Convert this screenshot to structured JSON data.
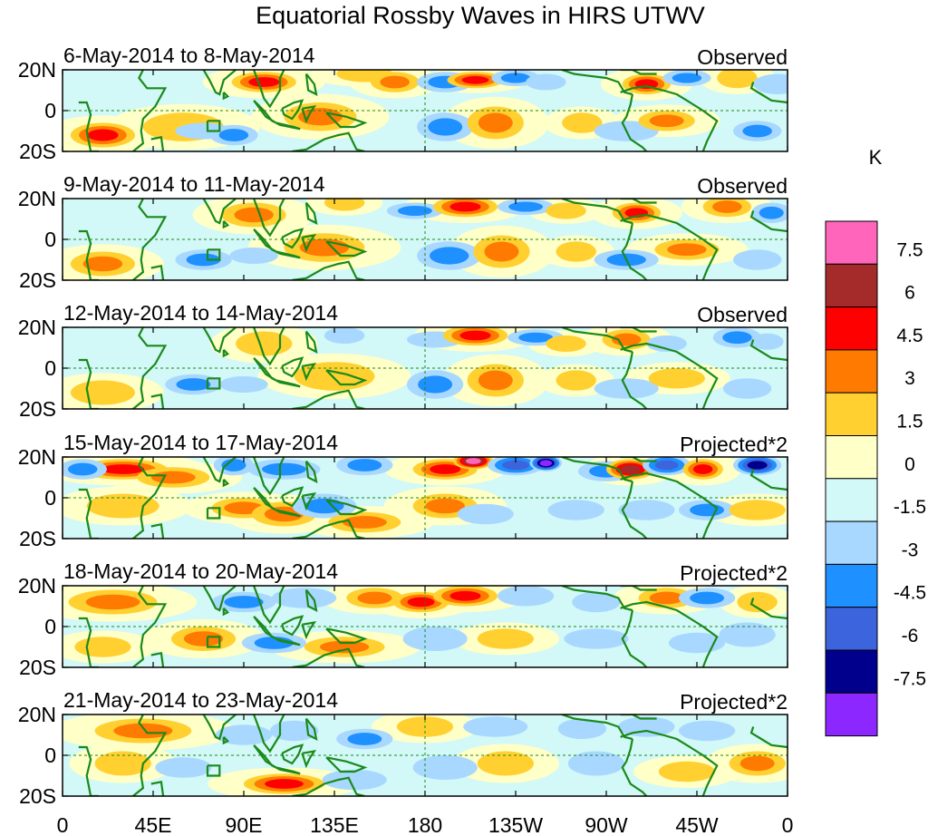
{
  "chart_data": {
    "type": "heatmap",
    "title": "Equatorial Rossby Waves in HIRS UTWV",
    "units": "K",
    "x_tick_labels": [
      "0",
      "45E",
      "90E",
      "135E",
      "180",
      "135W",
      "90W",
      "45W",
      "0"
    ],
    "x_range_deg": [
      0,
      360
    ],
    "y_tick_labels": [
      "20N",
      "0",
      "20S"
    ],
    "y_range_deg": [
      -20,
      20
    ],
    "colorbar": {
      "levels": [
        -7.5,
        -6,
        -4.5,
        -3,
        -1.5,
        0,
        1.5,
        3,
        4.5,
        6,
        7.5
      ],
      "level_labels": [
        "7.5",
        "6",
        "4.5",
        "3",
        "1.5",
        "0",
        "-1.5",
        "-3",
        "-4.5",
        "-6",
        "-7.5"
      ],
      "colors_top_to_bottom": [
        "#ff66bb",
        "#a52a2a",
        "#ff0000",
        "#ff7a00",
        "#ffd030",
        "#ffffc8",
        "#d2f8f8",
        "#a8d8ff",
        "#1e90ff",
        "#3c64dc",
        "#00008c",
        "#8c28ff"
      ]
    },
    "panels": [
      {
        "date_range": "6-May-2014 to 8-May-2014",
        "label": "Observed",
        "blobs": [
          [
            100,
            14,
            16,
            5,
            4.5
          ],
          [
            150,
            18,
            14,
            4,
            2.5
          ],
          [
            165,
            14,
            12,
            5,
            3.5
          ],
          [
            190,
            14,
            14,
            5,
            -3
          ],
          [
            205,
            15,
            14,
            4,
            5
          ],
          [
            225,
            16,
            12,
            4,
            -3.5
          ],
          [
            240,
            14,
            10,
            4,
            -2
          ],
          [
            290,
            13,
            12,
            5,
            5.5
          ],
          [
            310,
            16,
            12,
            4,
            -3
          ],
          [
            335,
            16,
            10,
            5,
            2
          ],
          [
            355,
            13,
            12,
            5,
            -2.5
          ],
          [
            60,
            -8,
            20,
            7,
            2
          ],
          [
            20,
            -12,
            16,
            6,
            4.5
          ],
          [
            70,
            -10,
            14,
            4,
            -2
          ],
          [
            85,
            -12,
            12,
            5,
            -3.5
          ],
          [
            128,
            -3,
            18,
            7,
            3
          ],
          [
            190,
            -8,
            14,
            7,
            -4
          ],
          [
            215,
            -6,
            14,
            8,
            4
          ],
          [
            258,
            -6,
            10,
            5,
            2
          ],
          [
            280,
            -10,
            16,
            5,
            -2.5
          ],
          [
            300,
            -5,
            14,
            5,
            4
          ],
          [
            345,
            -10,
            12,
            5,
            -3
          ]
        ]
      },
      {
        "date_range": "9-May-2014 to 11-May-2014",
        "label": "Observed",
        "blobs": [
          [
            95,
            12,
            16,
            6,
            3
          ],
          [
            140,
            18,
            10,
            4,
            2
          ],
          [
            175,
            14,
            14,
            4,
            -3
          ],
          [
            200,
            16,
            16,
            5,
            5.5
          ],
          [
            230,
            16,
            14,
            4,
            -3.5
          ],
          [
            250,
            14,
            10,
            4,
            2.5
          ],
          [
            285,
            13,
            12,
            5,
            5
          ],
          [
            330,
            16,
            12,
            5,
            4
          ],
          [
            352,
            13,
            10,
            5,
            -3.5
          ],
          [
            20,
            -12,
            16,
            6,
            3
          ],
          [
            70,
            -10,
            14,
            5,
            -3.5
          ],
          [
            95,
            -8,
            12,
            4,
            -2
          ],
          [
            130,
            -4,
            20,
            7,
            3.5
          ],
          [
            192,
            -8,
            16,
            7,
            -4
          ],
          [
            218,
            -6,
            14,
            8,
            4
          ],
          [
            255,
            -6,
            10,
            5,
            2.5
          ],
          [
            280,
            -10,
            16,
            5,
            -3
          ],
          [
            310,
            -5,
            16,
            5,
            3
          ],
          [
            345,
            -10,
            12,
            5,
            -2.5
          ]
        ]
      },
      {
        "date_range": "12-May-2014 to 14-May-2014",
        "label": "Observed",
        "blobs": [
          [
            100,
            12,
            14,
            6,
            2.5
          ],
          [
            140,
            16,
            10,
            4,
            -2
          ],
          [
            185,
            14,
            14,
            4,
            -2.5
          ],
          [
            205,
            16,
            16,
            5,
            5
          ],
          [
            235,
            15,
            14,
            4,
            -3
          ],
          [
            250,
            12,
            10,
            4,
            2
          ],
          [
            280,
            14,
            12,
            5,
            4
          ],
          [
            300,
            12,
            10,
            4,
            -2.5
          ],
          [
            335,
            15,
            12,
            5,
            -3
          ],
          [
            350,
            13,
            8,
            4,
            -2
          ],
          [
            20,
            -12,
            16,
            6,
            2
          ],
          [
            65,
            -8,
            14,
            5,
            -3
          ],
          [
            90,
            -8,
            12,
            4,
            -2.5
          ],
          [
            135,
            -4,
            20,
            7,
            2.5
          ],
          [
            185,
            -8,
            14,
            7,
            -3.5
          ],
          [
            215,
            -6,
            14,
            8,
            3.5
          ],
          [
            255,
            -6,
            10,
            5,
            2
          ],
          [
            280,
            -10,
            16,
            5,
            -2.5
          ],
          [
            305,
            -5,
            14,
            5,
            2.5
          ],
          [
            340,
            -10,
            12,
            5,
            -2
          ]
        ]
      },
      {
        "date_range": "15-May-2014 to 17-May-2014",
        "label": "Projected*2",
        "blobs": [
          [
            30,
            14,
            22,
            5,
            5.5
          ],
          [
            55,
            10,
            18,
            5,
            3
          ],
          [
            10,
            14,
            12,
            5,
            -3
          ],
          [
            85,
            16,
            10,
            5,
            -3
          ],
          [
            110,
            14,
            18,
            5,
            -4
          ],
          [
            150,
            16,
            14,
            5,
            -3
          ],
          [
            190,
            14,
            16,
            5,
            5.5
          ],
          [
            204,
            18,
            10,
            4,
            8
          ],
          [
            225,
            16,
            14,
            5,
            -5
          ],
          [
            240,
            17,
            8,
            4,
            -8
          ],
          [
            270,
            13,
            14,
            5,
            -3
          ],
          [
            282,
            14,
            12,
            5,
            6
          ],
          [
            300,
            16,
            12,
            5,
            -4.5
          ],
          [
            318,
            14,
            10,
            5,
            4.5
          ],
          [
            345,
            16,
            12,
            5,
            -6
          ],
          [
            30,
            -4,
            18,
            6,
            2.5
          ],
          [
            90,
            -5,
            16,
            5,
            4
          ],
          [
            110,
            -8,
            16,
            6,
            3
          ],
          [
            130,
            -4,
            16,
            6,
            -3
          ],
          [
            150,
            -12,
            18,
            5,
            3.5
          ],
          [
            190,
            -4,
            16,
            6,
            4
          ],
          [
            210,
            -8,
            14,
            5,
            -2.5
          ],
          [
            255,
            -6,
            14,
            5,
            -2
          ],
          [
            290,
            -6,
            14,
            5,
            -2.5
          ],
          [
            320,
            -6,
            14,
            5,
            -3
          ],
          [
            345,
            -6,
            14,
            5,
            2
          ]
        ]
      },
      {
        "date_range": "18-May-2014 to 20-May-2014",
        "label": "Projected*2",
        "blobs": [
          [
            25,
            12,
            22,
            6,
            3
          ],
          [
            90,
            12,
            16,
            5,
            -3
          ],
          [
            120,
            14,
            16,
            5,
            -2.5
          ],
          [
            155,
            14,
            14,
            5,
            4
          ],
          [
            178,
            12,
            14,
            5,
            4.5
          ],
          [
            200,
            15,
            16,
            5,
            5
          ],
          [
            230,
            15,
            14,
            5,
            -2.5
          ],
          [
            265,
            12,
            12,
            5,
            -2
          ],
          [
            300,
            14,
            14,
            5,
            3.5
          ],
          [
            320,
            14,
            14,
            5,
            -3
          ],
          [
            345,
            12,
            10,
            5,
            2
          ],
          [
            20,
            -10,
            14,
            5,
            2
          ],
          [
            70,
            -6,
            16,
            6,
            3
          ],
          [
            105,
            -8,
            16,
            5,
            -3
          ],
          [
            140,
            -10,
            20,
            5,
            3.5
          ],
          [
            185,
            -6,
            16,
            6,
            -2.5
          ],
          [
            220,
            -6,
            14,
            5,
            2
          ],
          [
            265,
            -6,
            16,
            5,
            -2
          ],
          [
            315,
            -8,
            14,
            5,
            -2
          ],
          [
            340,
            -4,
            14,
            6,
            -2.5
          ]
        ]
      },
      {
        "date_range": "21-May-2014 to 23-May-2014",
        "label": "Projected*2",
        "blobs": [
          [
            40,
            12,
            24,
            6,
            3
          ],
          [
            90,
            10,
            14,
            5,
            -2
          ],
          [
            115,
            12,
            12,
            5,
            -2.5
          ],
          [
            150,
            8,
            14,
            5,
            -3
          ],
          [
            180,
            14,
            14,
            5,
            2.5
          ],
          [
            215,
            14,
            16,
            5,
            -2.5
          ],
          [
            258,
            13,
            12,
            5,
            -2
          ],
          [
            290,
            14,
            14,
            5,
            -2
          ],
          [
            320,
            12,
            14,
            5,
            -2.5
          ],
          [
            30,
            -4,
            14,
            6,
            2
          ],
          [
            60,
            -6,
            14,
            5,
            -2
          ],
          [
            110,
            -14,
            20,
            5,
            4.5
          ],
          [
            145,
            -12,
            16,
            5,
            -2
          ],
          [
            190,
            -6,
            16,
            6,
            -2.5
          ],
          [
            220,
            -4,
            14,
            6,
            2.5
          ],
          [
            265,
            -4,
            14,
            6,
            -2
          ],
          [
            310,
            -8,
            14,
            5,
            2
          ],
          [
            345,
            -4,
            14,
            6,
            3
          ]
        ]
      }
    ]
  }
}
